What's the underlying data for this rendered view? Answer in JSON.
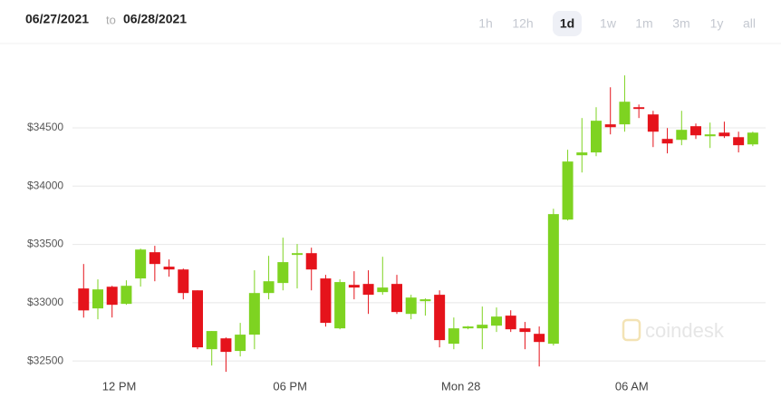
{
  "header": {
    "from": "06/27/2021",
    "to_word": "to",
    "to": "06/28/2021"
  },
  "range_buttons": [
    "1h",
    "12h",
    "1d",
    "1w",
    "1m",
    "3m",
    "1y",
    "all"
  ],
  "selected_range": "1d",
  "watermark": "coindesk",
  "chart_data": {
    "type": "candlestick",
    "up_color": "#7ed321",
    "down_color": "#e5131b",
    "grid": true,
    "x": [
      10.75,
      11.25,
      11.75,
      12.25,
      12.75,
      13.25,
      13.75,
      14.25,
      14.75,
      15.25,
      15.75,
      16.25,
      16.75,
      17.25,
      17.75,
      18.25,
      18.75,
      19.25,
      19.75,
      20.25,
      20.75,
      21.25,
      21.75,
      22.25,
      22.75,
      23.25,
      23.75,
      24.25,
      24.75,
      25.25,
      25.75,
      26.25,
      26.75,
      27.25,
      27.75,
      28.25,
      28.75,
      29.25,
      29.75,
      30.25,
      30.75,
      31.25,
      31.75,
      32.25,
      32.75,
      33.25,
      33.75,
      34.25
    ],
    "open": [
      33122,
      32951,
      33137,
      32990,
      33208,
      33433,
      33309,
      33285,
      33106,
      32601,
      32694,
      32586,
      32726,
      33083,
      33169,
      33410,
      33425,
      33208,
      32780,
      33153,
      33161,
      33091,
      33161,
      32904,
      33013,
      33068,
      32648,
      32780,
      32780,
      32803,
      32889,
      32780,
      32733,
      32648,
      33713,
      34265,
      34289,
      34530,
      34530,
      34677,
      34615,
      34405,
      34397,
      34514,
      34428,
      34459,
      34420,
      34358
    ],
    "high": [
      33332,
      33200,
      33145,
      33192,
      33464,
      33488,
      33371,
      33293,
      33106,
      32757,
      32702,
      32827,
      33278,
      33402,
      33558,
      33503,
      33472,
      33239,
      33200,
      33270,
      33278,
      33394,
      33239,
      33068,
      33037,
      33106,
      32873,
      32800,
      32967,
      32959,
      32935,
      32835,
      32796,
      33806,
      34312,
      34584,
      34677,
      34848,
      34950,
      34700,
      34646,
      34498,
      34646,
      34537,
      34545,
      34553,
      34467,
      34467
    ],
    "low": [
      32872,
      32858,
      32873,
      32982,
      33138,
      33184,
      33223,
      33029,
      32601,
      32461,
      32407,
      32539,
      32601,
      33029,
      33106,
      33122,
      33106,
      32795,
      32772,
      33029,
      32904,
      33068,
      32904,
      32858,
      32889,
      32617,
      32601,
      32772,
      32601,
      32749,
      32749,
      32601,
      32453,
      32632,
      33705,
      34117,
      34257,
      34444,
      34467,
      34584,
      34335,
      34281,
      34351,
      34405,
      34327,
      34413,
      34289,
      34343
    ],
    "close": [
      32934,
      33114,
      32982,
      33145,
      33456,
      33332,
      33285,
      33083,
      32617,
      32757,
      32578,
      32726,
      33083,
      33184,
      33348,
      33425,
      33285,
      32827,
      33177,
      33130,
      33068,
      33130,
      32920,
      33044,
      33029,
      32679,
      32780,
      32796,
      32811,
      32881,
      32772,
      32749,
      32663,
      33760,
      34211,
      34289,
      34561,
      34506,
      34724,
      34662,
      34467,
      34366,
      34483,
      34436,
      34444,
      34428,
      34351,
      34459
    ],
    "xlim": [
      10.2,
      34.7
    ],
    "xticks": [
      {
        "value": 12,
        "label": "12 PM"
      },
      {
        "value": 18,
        "label": "06 PM"
      },
      {
        "value": 24,
        "label": "Mon 28"
      },
      {
        "value": 30,
        "label": "06 AM"
      }
    ],
    "ylim": [
      32400,
      35200
    ],
    "yticks": [
      {
        "value": 32500,
        "label": "$32500"
      },
      {
        "value": 33000,
        "label": "$33000"
      },
      {
        "value": 33500,
        "label": "$33500"
      },
      {
        "value": 34000,
        "label": "$34000"
      },
      {
        "value": 34500,
        "label": "$34500"
      }
    ]
  }
}
